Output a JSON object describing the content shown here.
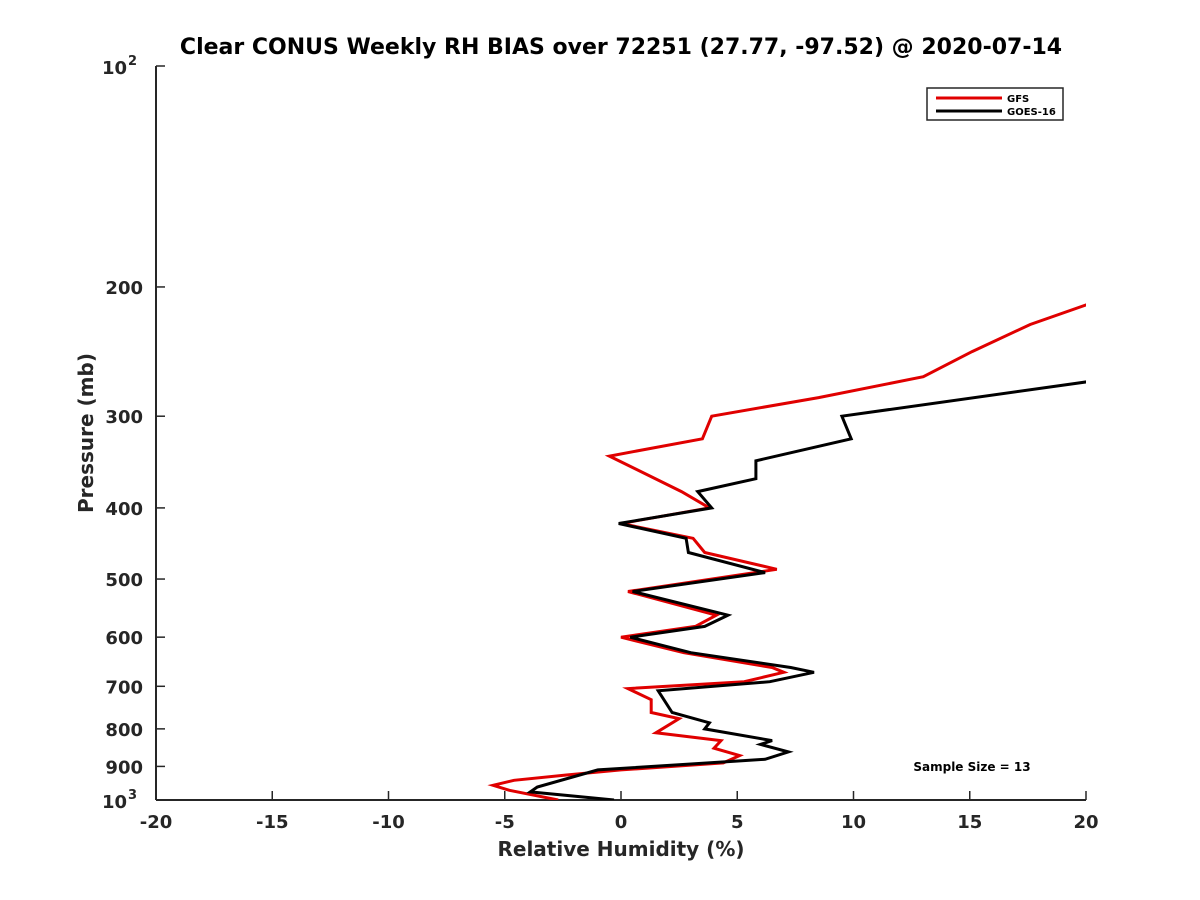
{
  "chart_data": {
    "type": "line",
    "title": "Clear CONUS Weekly RH BIAS over 72251 (27.77, -97.52) @ 2020-07-14",
    "xlabel": "Relative Humidity (%)",
    "ylabel": "Pressure (mb)",
    "xlim": [
      -20,
      20
    ],
    "ylim": [
      100,
      1000
    ],
    "y_scale": "log",
    "y_reversed": true,
    "x_ticks": [
      "-20",
      "-15",
      "-10",
      "-5",
      "0",
      "5",
      "10",
      "15",
      "20"
    ],
    "y_ticks": [
      {
        "value": 100,
        "base": "10",
        "exp": "2"
      },
      {
        "value": 200,
        "label": "200"
      },
      {
        "value": 300,
        "label": "300"
      },
      {
        "value": 400,
        "label": "400"
      },
      {
        "value": 500,
        "label": "500"
      },
      {
        "value": 600,
        "label": "600"
      },
      {
        "value": 700,
        "label": "700"
      },
      {
        "value": 800,
        "label": "800"
      },
      {
        "value": 900,
        "label": "900"
      },
      {
        "value": 1000,
        "base": "10",
        "exp": "3"
      }
    ],
    "grid": false,
    "legend_position": "top-right",
    "series": [
      {
        "name": "GFS",
        "color": "#e00000",
        "points": [
          [
            20.3,
            210
          ],
          [
            17.6,
            225
          ],
          [
            15.1,
            245
          ],
          [
            13.0,
            265
          ],
          [
            8.5,
            283
          ],
          [
            3.9,
            300
          ],
          [
            3.5,
            322
          ],
          [
            -0.5,
            340
          ],
          [
            2.6,
            380
          ],
          [
            3.8,
            400
          ],
          [
            0.0,
            420
          ],
          [
            3.1,
            440
          ],
          [
            3.6,
            460
          ],
          [
            6.7,
            485
          ],
          [
            0.3,
            520
          ],
          [
            4.1,
            560
          ],
          [
            3.2,
            580
          ],
          [
            0.0,
            600
          ],
          [
            2.7,
            630
          ],
          [
            6.5,
            660
          ],
          [
            7.0,
            670
          ],
          [
            5.3,
            690
          ],
          [
            0.3,
            705
          ],
          [
            1.3,
            730
          ],
          [
            1.3,
            760
          ],
          [
            2.5,
            775
          ],
          [
            1.5,
            810
          ],
          [
            4.3,
            830
          ],
          [
            4.0,
            850
          ],
          [
            5.1,
            870
          ],
          [
            4.4,
            890
          ],
          [
            0.0,
            910
          ],
          [
            -2.4,
            925
          ],
          [
            -4.6,
            940
          ],
          [
            -5.5,
            955
          ],
          [
            -4.8,
            970
          ],
          [
            -2.7,
            1000
          ]
        ]
      },
      {
        "name": "GOES-16",
        "color": "#000000",
        "points": [
          [
            20.5,
            268
          ],
          [
            9.5,
            300
          ],
          [
            9.9,
            322
          ],
          [
            5.8,
            345
          ],
          [
            5.8,
            365
          ],
          [
            3.3,
            380
          ],
          [
            3.9,
            400
          ],
          [
            -0.1,
            420
          ],
          [
            2.8,
            440
          ],
          [
            2.9,
            460
          ],
          [
            6.2,
            490
          ],
          [
            0.5,
            520
          ],
          [
            4.6,
            560
          ],
          [
            3.6,
            580
          ],
          [
            0.4,
            600
          ],
          [
            3.0,
            630
          ],
          [
            7.3,
            660
          ],
          [
            8.3,
            670
          ],
          [
            6.4,
            690
          ],
          [
            1.6,
            710
          ],
          [
            2.2,
            760
          ],
          [
            3.8,
            785
          ],
          [
            3.6,
            800
          ],
          [
            6.5,
            830
          ],
          [
            6.0,
            840
          ],
          [
            7.2,
            860
          ],
          [
            6.2,
            880
          ],
          [
            -1.0,
            910
          ],
          [
            -3.6,
            960
          ],
          [
            -3.9,
            975
          ],
          [
            -0.3,
            1000
          ]
        ]
      }
    ],
    "annotation": "Sample Size = 13"
  }
}
